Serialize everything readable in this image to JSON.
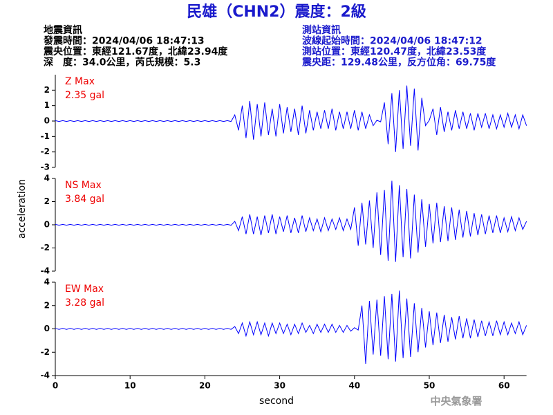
{
  "header": {
    "title": "民雄（CHN2）震度：2級",
    "left_info": [
      "地震資訊",
      "發震時間：2024/04/06 18:47:13",
      "震央位置：東經121.67度，北緯23.94度",
      "深　度：34.0公里，芮氏規模：5.3"
    ],
    "right_info": [
      "測站資訊",
      "波線起始時間：2024/04/06 18:47:12",
      "測站位置：東經120.47度，北緯23.53度",
      "震央距：129.48公里，反方位角：69.75度"
    ],
    "watermark": "中央氣象署"
  },
  "chart_data": [
    {
      "type": "line",
      "annotations": [
        "Z Max",
        "2.35 gal"
      ],
      "color": "#0000ff",
      "xlim": [
        0,
        63
      ],
      "ylim": [
        -3,
        3
      ],
      "yticks": [
        -3,
        -2,
        -1,
        0,
        1,
        2
      ],
      "x": [
        0,
        0.5,
        1,
        1.5,
        2,
        2.5,
        3,
        3.5,
        4,
        4.5,
        5,
        5.5,
        6,
        6.5,
        7,
        7.5,
        8,
        8.5,
        9,
        9.5,
        10,
        10.5,
        11,
        11.5,
        12,
        12.5,
        13,
        13.5,
        14,
        14.5,
        15,
        15.5,
        16,
        16.5,
        17,
        17.5,
        18,
        18.5,
        19,
        19.5,
        20,
        20.5,
        21,
        21.5,
        22,
        22.5,
        23,
        23.5,
        24,
        24.5,
        25,
        25.5,
        26,
        26.5,
        27,
        27.5,
        28,
        28.5,
        29,
        29.5,
        30,
        30.5,
        31,
        31.5,
        32,
        32.5,
        33,
        33.5,
        34,
        34.5,
        35,
        35.5,
        36,
        36.5,
        37,
        37.5,
        38,
        38.5,
        39,
        39.5,
        40,
        40.5,
        41,
        41.5,
        42,
        42.5,
        43,
        43.5,
        44,
        44.5,
        45,
        45.5,
        46,
        46.5,
        47,
        47.5,
        48,
        48.5,
        49,
        49.5,
        50,
        50.5,
        51,
        51.5,
        52,
        52.5,
        53,
        53.5,
        54,
        54.5,
        55,
        55.5,
        56,
        56.5,
        57,
        57.5,
        58,
        58.5,
        59,
        59.5,
        60,
        60.5,
        61,
        61.5,
        62,
        62.5,
        63
      ],
      "values": [
        0.03,
        -0.03,
        0.03,
        -0.03,
        0.03,
        -0.03,
        0.03,
        -0.03,
        0.03,
        -0.03,
        0.03,
        -0.03,
        0.03,
        -0.03,
        0.03,
        -0.03,
        0.03,
        -0.03,
        0.03,
        -0.03,
        0.03,
        -0.03,
        0.03,
        -0.03,
        0.03,
        -0.03,
        0.03,
        -0.03,
        0.03,
        -0.03,
        0.03,
        -0.03,
        0.03,
        -0.03,
        0.03,
        -0.03,
        0.03,
        -0.03,
        0.03,
        -0.03,
        0.03,
        -0.03,
        0.03,
        -0.03,
        0.03,
        -0.03,
        0.03,
        -0.03,
        0.4,
        -0.6,
        1.0,
        -1.1,
        1.3,
        -1.2,
        1.1,
        -1.0,
        1.2,
        -0.9,
        0.8,
        -1.0,
        1.1,
        -0.8,
        0.9,
        -0.7,
        0.8,
        -0.9,
        1.0,
        -0.8,
        0.7,
        -0.6,
        0.6,
        -0.5,
        0.7,
        -0.5,
        0.8,
        -0.6,
        0.6,
        -0.5,
        0.6,
        -0.5,
        0.7,
        -0.6,
        0.6,
        -0.5,
        0.4,
        -0.3,
        0.05,
        -0.05,
        1.2,
        -1.5,
        1.8,
        -2.0,
        2.0,
        -1.8,
        2.3,
        -1.6,
        2.1,
        -1.9,
        1.5,
        -0.3,
        0.05,
        0.8,
        -0.9,
        0.9,
        -0.7,
        0.6,
        -0.6,
        0.7,
        -0.5,
        0.6,
        -0.5,
        0.5,
        -0.6,
        0.5,
        -0.4,
        0.5,
        -0.5,
        0.4,
        -0.5,
        0.4,
        -0.4,
        0.5,
        -0.4,
        0.4,
        -0.5,
        0.4,
        -0.3
      ]
    },
    {
      "type": "line",
      "annotations": [
        "NS Max",
        "3.84 gal"
      ],
      "ylabel": "acceleration",
      "color": "#0000ff",
      "xlim": [
        0,
        63
      ],
      "ylim": [
        -4,
        4
      ],
      "yticks": [
        -4,
        -2,
        0,
        2,
        4
      ],
      "x": [
        0,
        0.5,
        1,
        1.5,
        2,
        2.5,
        3,
        3.5,
        4,
        4.5,
        5,
        5.5,
        6,
        6.5,
        7,
        7.5,
        8,
        8.5,
        9,
        9.5,
        10,
        10.5,
        11,
        11.5,
        12,
        12.5,
        13,
        13.5,
        14,
        14.5,
        15,
        15.5,
        16,
        16.5,
        17,
        17.5,
        18,
        18.5,
        19,
        19.5,
        20,
        20.5,
        21,
        21.5,
        22,
        22.5,
        23,
        23.5,
        24,
        24.5,
        25,
        25.5,
        26,
        26.5,
        27,
        27.5,
        28,
        28.5,
        29,
        29.5,
        30,
        30.5,
        31,
        31.5,
        32,
        32.5,
        33,
        33.5,
        34,
        34.5,
        35,
        35.5,
        36,
        36.5,
        37,
        37.5,
        38,
        38.5,
        39,
        39.5,
        40,
        40.5,
        41,
        41.5,
        42,
        42.5,
        43,
        43.5,
        44,
        44.5,
        45,
        45.5,
        46,
        46.5,
        47,
        47.5,
        48,
        48.5,
        49,
        49.5,
        50,
        50.5,
        51,
        51.5,
        52,
        52.5,
        53,
        53.5,
        54,
        54.5,
        55,
        55.5,
        56,
        56.5,
        57,
        57.5,
        58,
        58.5,
        59,
        59.5,
        60,
        60.5,
        61,
        61.5,
        62,
        62.5,
        63
      ],
      "values": [
        0.04,
        -0.04,
        0.04,
        -0.04,
        0.04,
        -0.04,
        0.04,
        -0.04,
        0.04,
        -0.04,
        0.04,
        -0.04,
        0.04,
        -0.04,
        0.04,
        -0.04,
        0.04,
        -0.04,
        0.04,
        -0.04,
        0.04,
        -0.04,
        0.04,
        -0.04,
        0.04,
        -0.04,
        0.04,
        -0.04,
        0.04,
        -0.04,
        0.04,
        -0.04,
        0.04,
        -0.04,
        0.04,
        -0.04,
        0.04,
        -0.04,
        0.04,
        -0.04,
        0.04,
        -0.04,
        0.04,
        -0.04,
        0.04,
        -0.04,
        0.04,
        -0.04,
        0.3,
        -0.5,
        0.7,
        -0.8,
        0.9,
        -0.8,
        0.7,
        -0.9,
        0.8,
        -0.7,
        0.9,
        -0.8,
        0.7,
        -0.6,
        0.8,
        -0.7,
        0.6,
        -0.7,
        0.8,
        -0.6,
        0.6,
        -0.5,
        0.5,
        -0.6,
        0.6,
        -0.5,
        0.5,
        -0.4,
        0.6,
        -0.5,
        0.5,
        -0.4,
        1.5,
        -1.8,
        1.9,
        -1.7,
        2.1,
        -2.0,
        2.8,
        -2.6,
        3.0,
        -3.1,
        3.8,
        -3.2,
        3.4,
        -2.8,
        3.1,
        -2.9,
        2.6,
        -2.4,
        2.2,
        -1.9,
        1.8,
        -1.6,
        1.9,
        -1.5,
        1.6,
        -1.4,
        1.5,
        -1.3,
        1.3,
        -1.1,
        1.2,
        -1.0,
        1.0,
        -0.9,
        0.9,
        -0.8,
        0.8,
        -0.7,
        0.8,
        -0.7,
        0.6,
        -0.6,
        0.7,
        -0.5,
        0.6,
        -0.4,
        0.3
      ]
    },
    {
      "type": "line",
      "annotations": [
        "EW Max",
        "3.28 gal"
      ],
      "xlabel": "second",
      "color": "#0000ff",
      "xlim": [
        0,
        63
      ],
      "ylim": [
        -4,
        4
      ],
      "yticks": [
        -4,
        -2,
        0,
        2,
        4
      ],
      "xticks": [
        0,
        10,
        20,
        30,
        40,
        50,
        60
      ],
      "x": [
        0,
        0.5,
        1,
        1.5,
        2,
        2.5,
        3,
        3.5,
        4,
        4.5,
        5,
        5.5,
        6,
        6.5,
        7,
        7.5,
        8,
        8.5,
        9,
        9.5,
        10,
        10.5,
        11,
        11.5,
        12,
        12.5,
        13,
        13.5,
        14,
        14.5,
        15,
        15.5,
        16,
        16.5,
        17,
        17.5,
        18,
        18.5,
        19,
        19.5,
        20,
        20.5,
        21,
        21.5,
        22,
        22.5,
        23,
        23.5,
        24,
        24.5,
        25,
        25.5,
        26,
        26.5,
        27,
        27.5,
        28,
        28.5,
        29,
        29.5,
        30,
        30.5,
        31,
        31.5,
        32,
        32.5,
        33,
        33.5,
        34,
        34.5,
        35,
        35.5,
        36,
        36.5,
        37,
        37.5,
        38,
        38.5,
        39,
        39.5,
        40,
        40.5,
        41,
        41.5,
        42,
        42.5,
        43,
        43.5,
        44,
        44.5,
        45,
        45.5,
        46,
        46.5,
        47,
        47.5,
        48,
        48.5,
        49,
        49.5,
        50,
        50.5,
        51,
        51.5,
        52,
        52.5,
        53,
        53.5,
        54,
        54.5,
        55,
        55.5,
        56,
        56.5,
        57,
        57.5,
        58,
        58.5,
        59,
        59.5,
        60,
        60.5,
        61,
        61.5,
        62,
        62.5,
        63
      ],
      "values": [
        0.04,
        -0.04,
        0.04,
        -0.04,
        0.04,
        -0.04,
        0.04,
        -0.04,
        0.04,
        -0.04,
        0.04,
        -0.04,
        0.04,
        -0.04,
        0.04,
        -0.04,
        0.04,
        -0.04,
        0.04,
        -0.04,
        0.04,
        -0.04,
        0.04,
        -0.04,
        0.04,
        -0.04,
        0.04,
        -0.04,
        0.04,
        -0.04,
        0.04,
        -0.04,
        0.04,
        -0.04,
        0.04,
        -0.04,
        0.04,
        -0.04,
        0.04,
        -0.04,
        0.04,
        -0.04,
        0.04,
        -0.04,
        0.04,
        -0.04,
        0.04,
        -0.04,
        0.2,
        -0.4,
        0.5,
        -0.6,
        0.6,
        -0.5,
        0.6,
        -0.5,
        0.5,
        -0.6,
        0.5,
        -0.4,
        0.5,
        -0.4,
        0.4,
        -0.5,
        0.4,
        -0.4,
        0.5,
        -0.3,
        0.3,
        -0.4,
        0.4,
        -0.3,
        0.4,
        -0.3,
        0.4,
        -0.3,
        0.3,
        -0.3,
        0.3,
        -0.2,
        0.1,
        -0.1,
        2.0,
        -3.0,
        2.4,
        -2.2,
        2.5,
        -2.3,
        2.8,
        -2.6,
        3.0,
        -2.8,
        3.28,
        -2.5,
        2.6,
        -2.4,
        2.2,
        -2.0,
        1.8,
        -1.6,
        1.5,
        -1.4,
        1.4,
        -1.2,
        1.2,
        -1.1,
        1.0,
        -0.9,
        1.1,
        -0.8,
        0.9,
        -0.8,
        0.8,
        -0.7,
        0.7,
        -0.6,
        0.6,
        -0.6,
        0.7,
        -0.5,
        0.6,
        -0.5,
        0.5,
        -0.4,
        0.6,
        -0.5,
        0.3
      ]
    }
  ]
}
